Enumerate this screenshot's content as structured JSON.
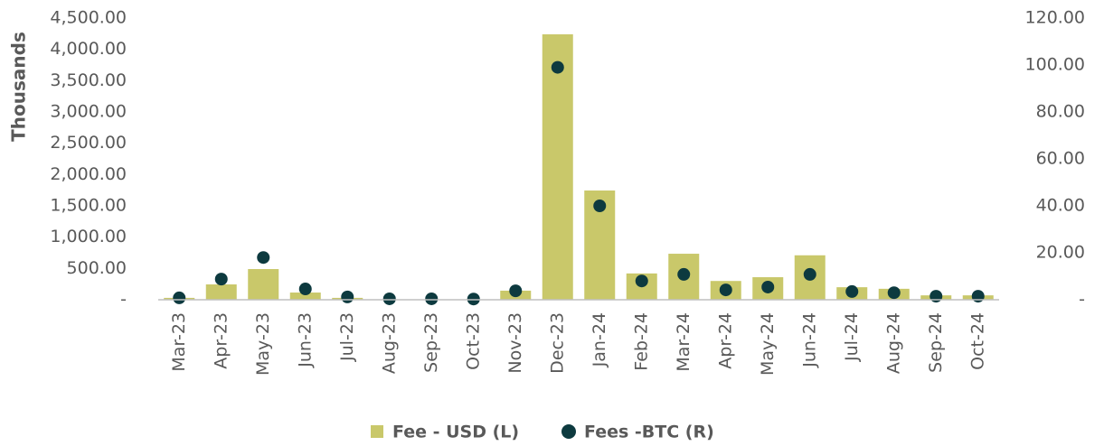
{
  "chart_data": {
    "type": "bar_scatter",
    "ylabel": "Thousands",
    "categories": [
      "Mar-23",
      "Apr-23",
      "May-23",
      "Jun-23",
      "Jul-23",
      "Aug-23",
      "Sep-23",
      "Oct-23",
      "Nov-23",
      "Dec-23",
      "Jan-24",
      "Feb-24",
      "Mar-24",
      "Apr-24",
      "May-24",
      "Jun-24",
      "Jul-24",
      "Aug-24",
      "Sep-24",
      "Oct-24"
    ],
    "series": [
      {
        "name": "Fee - USD (L)",
        "type": "bar",
        "color": "#c9c86a",
        "values": [
          30,
          245,
          490,
          115,
          30,
          0,
          0,
          0,
          145,
          4240,
          1745,
          420,
          735,
          300,
          360,
          710,
          200,
          175,
          70,
          70
        ]
      },
      {
        "name": "Fees -BTC (R)",
        "type": "scatter",
        "axis": "y2",
        "color": "#0d3a3f",
        "values": [
          0.8,
          8.8,
          18,
          4.6,
          1.2,
          0.4,
          0.4,
          0.3,
          3.8,
          99,
          40,
          8,
          10.8,
          4.2,
          5.4,
          10.8,
          3.5,
          3,
          1.5,
          1.5
        ]
      }
    ],
    "ylim": [
      0,
      4500
    ],
    "yticks": [
      {
        "value": 0,
        "label": "-"
      },
      {
        "value": 500,
        "label": "500.00"
      },
      {
        "value": 1000,
        "label": "1,000.00"
      },
      {
        "value": 1500,
        "label": "1,500.00"
      },
      {
        "value": 2000,
        "label": "2,000.00"
      },
      {
        "value": 2500,
        "label": "2,500.00"
      },
      {
        "value": 3000,
        "label": "3,000.00"
      },
      {
        "value": 3500,
        "label": "3,500.00"
      },
      {
        "value": 4000,
        "label": "4,000.00"
      },
      {
        "value": 4500,
        "label": "4,500.00"
      }
    ],
    "y2lim": [
      0,
      120
    ],
    "y2ticks": [
      {
        "value": 0,
        "label": "-"
      },
      {
        "value": 20,
        "label": "20.00"
      },
      {
        "value": 40,
        "label": "40.00"
      },
      {
        "value": 60,
        "label": "60.00"
      },
      {
        "value": 80,
        "label": "80.00"
      },
      {
        "value": 100,
        "label": "100.00"
      },
      {
        "value": 120,
        "label": "120.00"
      }
    ],
    "grid": false,
    "legend": "bottom"
  }
}
